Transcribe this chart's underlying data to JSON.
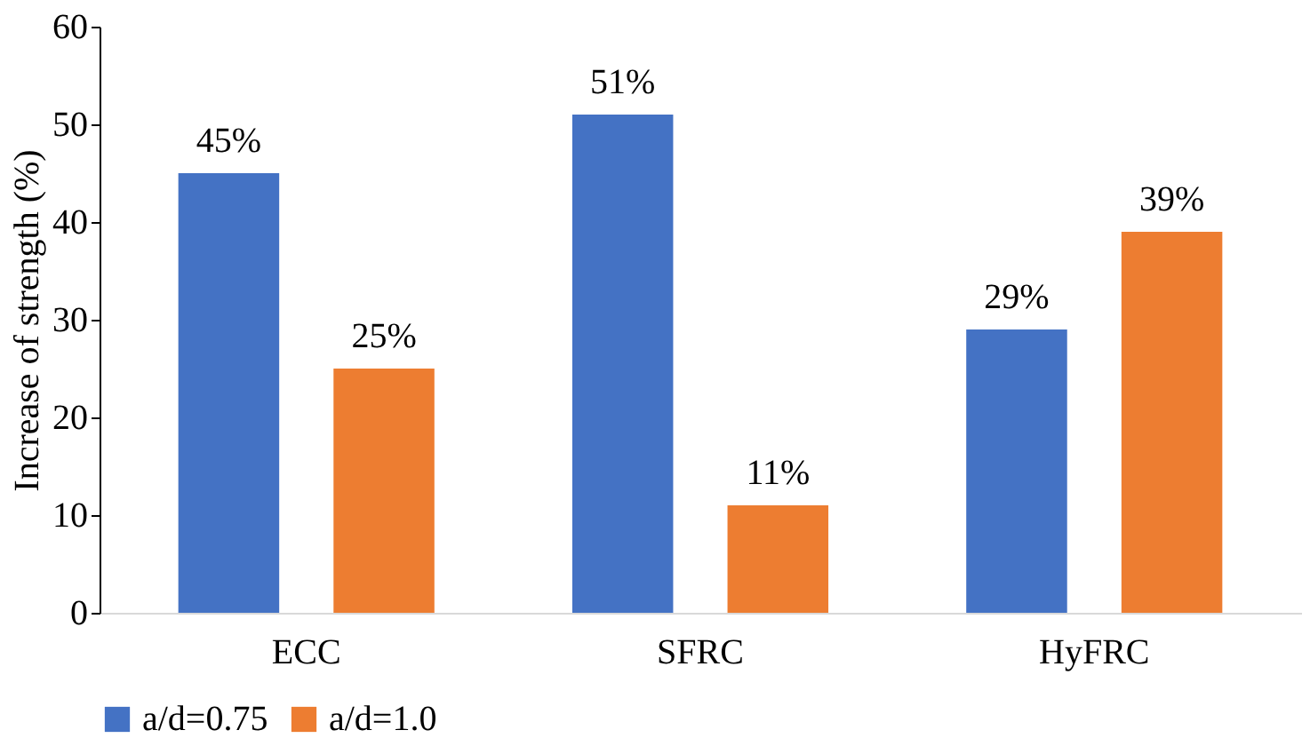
{
  "chart_data": {
    "type": "bar",
    "ylabel": "Increase of strength (%)",
    "categories": [
      "ECC",
      "SFRC",
      "HyFRC"
    ],
    "series": [
      {
        "name": "a/d=0.75",
        "color": "#4472c4",
        "values": [
          45,
          51,
          29
        ],
        "value_labels": [
          "45%",
          "51%",
          "29%"
        ]
      },
      {
        "name": "a/d=1.0",
        "color": "#ed7d31",
        "values": [
          25,
          11,
          39
        ],
        "value_labels": [
          "25%",
          "11%",
          "39%"
        ]
      }
    ],
    "ylim": [
      0,
      60
    ],
    "yticks": [
      0,
      10,
      20,
      30,
      40,
      50,
      60
    ],
    "grid": false,
    "legend": "bottom"
  }
}
